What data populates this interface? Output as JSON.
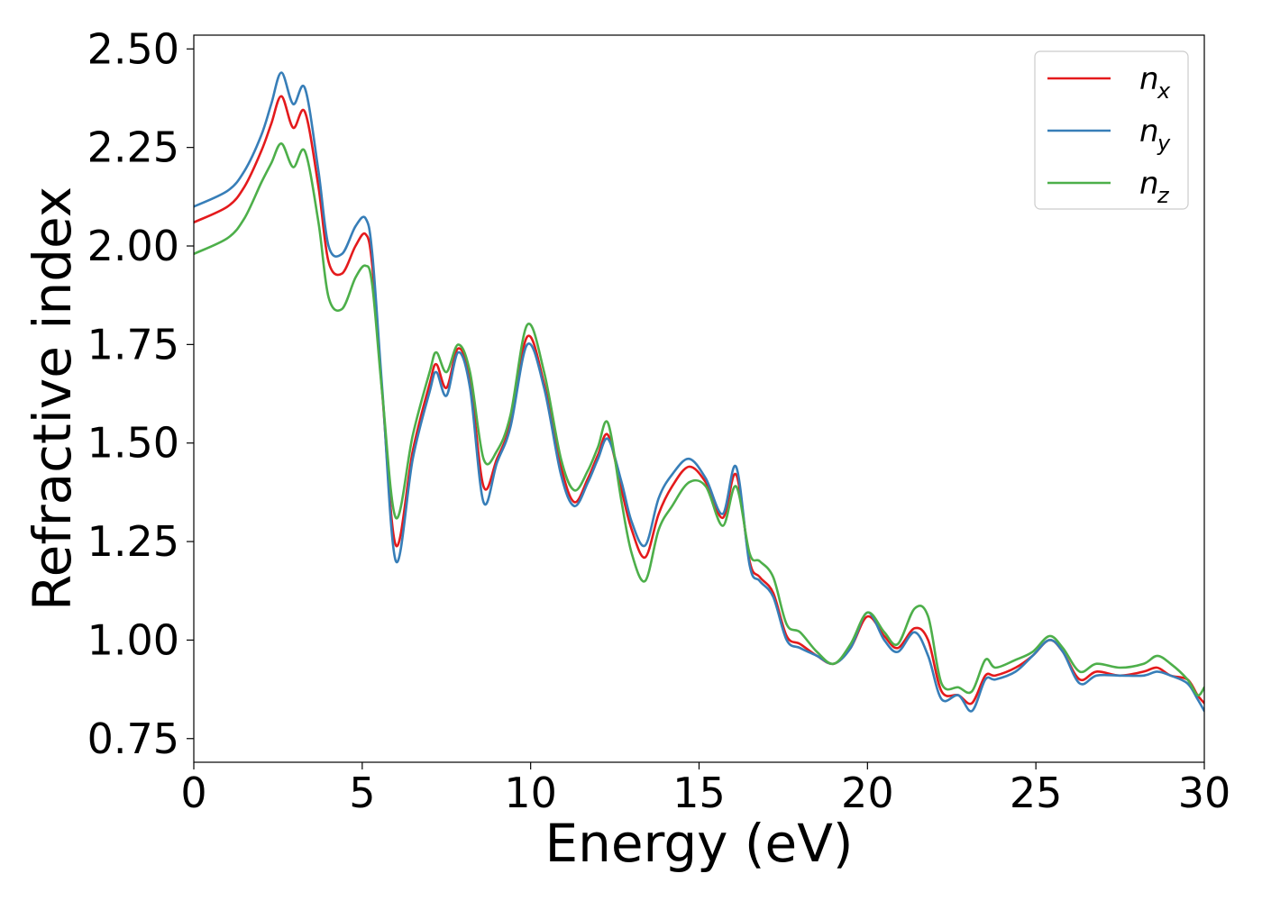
{
  "chart_data": {
    "type": "line",
    "title": "",
    "xlabel": "Energy (eV)",
    "ylabel": "Refractive index",
    "xlim": [
      0,
      30
    ],
    "ylim": [
      0.69,
      2.535
    ],
    "xticks": [
      0,
      5,
      10,
      15,
      20,
      25,
      30
    ],
    "xtick_labels": [
      "0",
      "5",
      "10",
      "15",
      "20",
      "25",
      "30"
    ],
    "yticks": [
      0.75,
      1.0,
      1.25,
      1.5,
      1.75,
      2.0,
      2.25,
      2.5
    ],
    "ytick_labels": [
      "0.75",
      "1.00",
      "1.25",
      "1.50",
      "1.75",
      "2.00",
      "2.25",
      "2.50"
    ],
    "grid": false,
    "legend_position": "top-right",
    "series": [
      {
        "name": "n_x",
        "legend_base": "n",
        "legend_sub": "x",
        "color": "#e41a1c",
        "x": [
          0,
          1,
          1.5,
          2,
          2.3,
          2.6,
          2.95,
          3.3,
          3.7,
          4.0,
          4.4,
          4.8,
          5.1,
          5.3,
          5.6,
          6.0,
          6.5,
          7.0,
          7.2,
          7.5,
          7.85,
          8.2,
          8.6,
          9.0,
          9.4,
          9.9,
          10.4,
          10.9,
          11.3,
          11.7,
          12.0,
          12.3,
          12.7,
          13.0,
          13.4,
          13.8,
          14.2,
          14.7,
          15.2,
          15.7,
          16.1,
          16.5,
          16.8,
          17.2,
          17.6,
          18.0,
          18.5,
          19.0,
          19.5,
          20.0,
          20.5,
          20.9,
          21.4,
          21.8,
          22.2,
          22.7,
          23.1,
          23.5,
          23.8,
          24.4,
          24.9,
          25.4,
          25.8,
          26.3,
          26.8,
          27.5,
          28.2,
          28.6,
          29.0,
          29.5,
          29.8,
          30.0
        ],
        "y": [
          2.06,
          2.1,
          2.15,
          2.24,
          2.31,
          2.38,
          2.3,
          2.34,
          2.15,
          1.96,
          1.93,
          2.0,
          2.03,
          1.95,
          1.62,
          1.24,
          1.48,
          1.65,
          1.7,
          1.64,
          1.74,
          1.66,
          1.39,
          1.46,
          1.55,
          1.77,
          1.65,
          1.44,
          1.35,
          1.41,
          1.47,
          1.52,
          1.38,
          1.28,
          1.21,
          1.32,
          1.39,
          1.44,
          1.4,
          1.31,
          1.42,
          1.2,
          1.16,
          1.12,
          1.01,
          0.99,
          0.96,
          0.94,
          0.98,
          1.06,
          1.01,
          0.98,
          1.03,
          1.0,
          0.87,
          0.86,
          0.84,
          0.91,
          0.91,
          0.93,
          0.96,
          1.0,
          0.97,
          0.9,
          0.92,
          0.91,
          0.92,
          0.93,
          0.91,
          0.9,
          0.86,
          0.84
        ]
      },
      {
        "name": "n_y",
        "legend_base": "n",
        "legend_sub": "y",
        "color": "#377eb8",
        "x": [
          0,
          1,
          1.5,
          2,
          2.3,
          2.6,
          2.95,
          3.3,
          3.7,
          4.0,
          4.4,
          4.8,
          5.1,
          5.3,
          5.6,
          6.0,
          6.5,
          7.0,
          7.2,
          7.5,
          7.85,
          8.2,
          8.6,
          9.0,
          9.4,
          9.9,
          10.4,
          10.9,
          11.3,
          11.7,
          12.0,
          12.3,
          12.7,
          13.0,
          13.4,
          13.8,
          14.2,
          14.7,
          15.2,
          15.7,
          16.1,
          16.5,
          16.8,
          17.2,
          17.6,
          18.0,
          18.5,
          19.0,
          19.5,
          20.0,
          20.5,
          20.9,
          21.4,
          21.8,
          22.2,
          22.7,
          23.1,
          23.5,
          23.8,
          24.4,
          24.9,
          25.4,
          25.8,
          26.3,
          26.8,
          27.5,
          28.2,
          28.6,
          29.0,
          29.5,
          29.8,
          30.0
        ],
        "y": [
          2.1,
          2.14,
          2.19,
          2.28,
          2.36,
          2.44,
          2.36,
          2.4,
          2.19,
          2.0,
          1.98,
          2.05,
          2.07,
          1.98,
          1.63,
          1.2,
          1.46,
          1.63,
          1.68,
          1.62,
          1.73,
          1.64,
          1.35,
          1.45,
          1.54,
          1.75,
          1.64,
          1.42,
          1.34,
          1.4,
          1.46,
          1.51,
          1.4,
          1.3,
          1.24,
          1.36,
          1.42,
          1.46,
          1.41,
          1.32,
          1.44,
          1.19,
          1.15,
          1.11,
          1.0,
          0.98,
          0.96,
          0.94,
          0.98,
          1.07,
          1.0,
          0.97,
          1.02,
          0.96,
          0.85,
          0.86,
          0.82,
          0.9,
          0.9,
          0.92,
          0.96,
          1.0,
          0.97,
          0.89,
          0.91,
          0.91,
          0.91,
          0.92,
          0.91,
          0.89,
          0.85,
          0.82
        ]
      },
      {
        "name": "n_z",
        "legend_base": "n",
        "legend_sub": "z",
        "color": "#4daf4a",
        "x": [
          0,
          1,
          1.5,
          2,
          2.3,
          2.6,
          2.95,
          3.3,
          3.7,
          4.0,
          4.4,
          4.8,
          5.1,
          5.3,
          5.6,
          6.0,
          6.5,
          7.0,
          7.2,
          7.5,
          7.85,
          8.2,
          8.6,
          9.0,
          9.4,
          9.9,
          10.4,
          10.9,
          11.3,
          11.7,
          12.0,
          12.3,
          12.7,
          13.0,
          13.4,
          13.8,
          14.2,
          14.7,
          15.2,
          15.7,
          16.1,
          16.5,
          16.8,
          17.2,
          17.6,
          18.0,
          18.5,
          19.0,
          19.5,
          20.0,
          20.5,
          20.9,
          21.4,
          21.8,
          22.2,
          22.7,
          23.1,
          23.5,
          23.8,
          24.4,
          24.9,
          25.4,
          25.8,
          26.3,
          26.8,
          27.5,
          28.2,
          28.6,
          29.0,
          29.5,
          29.8,
          30.0
        ],
        "y": [
          1.98,
          2.02,
          2.07,
          2.16,
          2.21,
          2.26,
          2.2,
          2.24,
          2.06,
          1.87,
          1.84,
          1.92,
          1.95,
          1.9,
          1.62,
          1.31,
          1.52,
          1.68,
          1.73,
          1.68,
          1.75,
          1.68,
          1.46,
          1.48,
          1.57,
          1.8,
          1.68,
          1.46,
          1.38,
          1.43,
          1.49,
          1.55,
          1.35,
          1.22,
          1.15,
          1.28,
          1.34,
          1.4,
          1.39,
          1.29,
          1.39,
          1.22,
          1.2,
          1.16,
          1.04,
          1.02,
          0.97,
          0.94,
          0.99,
          1.07,
          1.02,
          0.99,
          1.08,
          1.06,
          0.89,
          0.88,
          0.87,
          0.95,
          0.93,
          0.95,
          0.97,
          1.01,
          0.98,
          0.92,
          0.94,
          0.93,
          0.94,
          0.96,
          0.94,
          0.9,
          0.86,
          0.88
        ]
      }
    ]
  }
}
